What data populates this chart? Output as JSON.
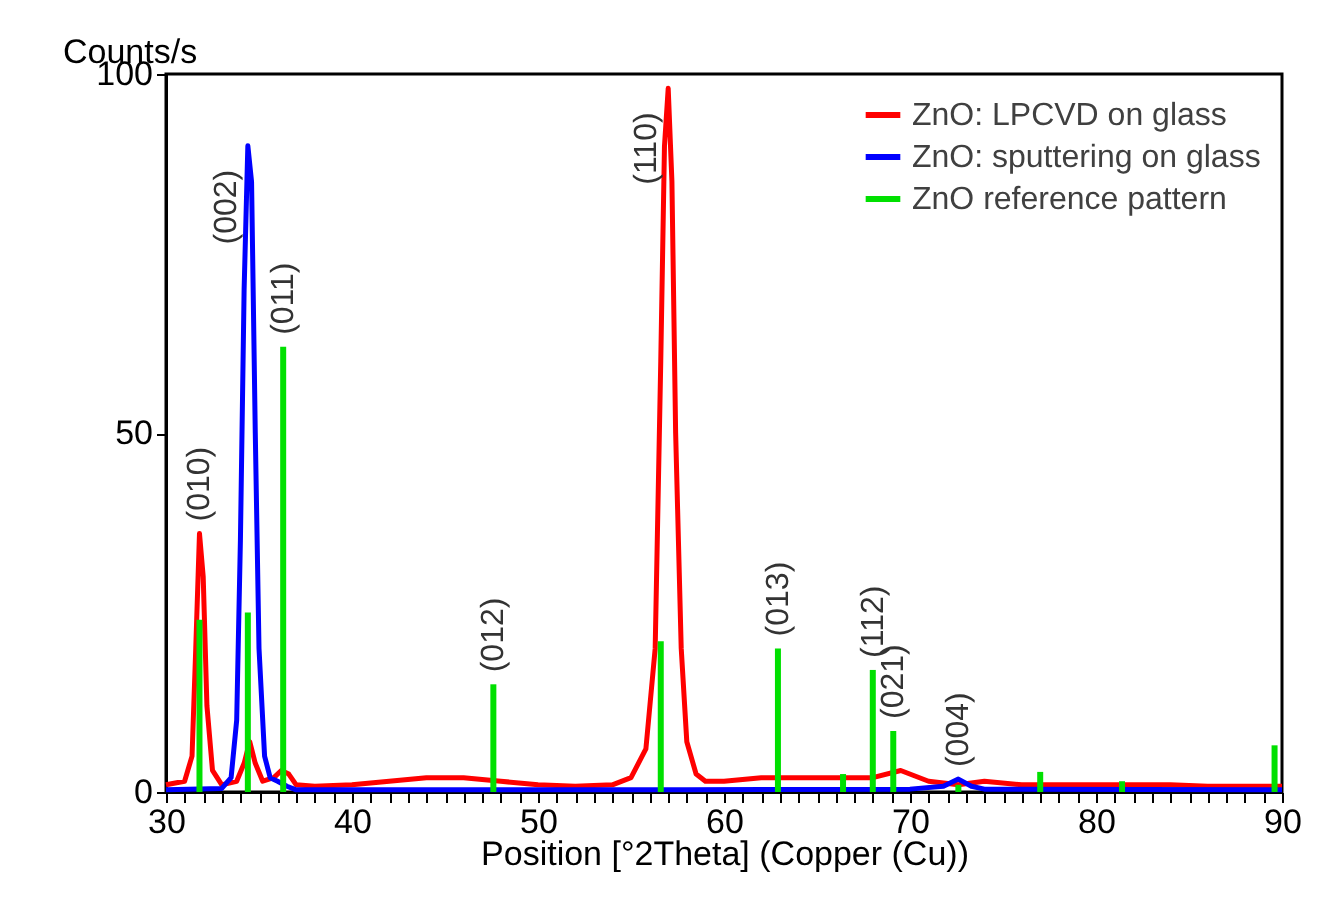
{
  "chart_data": {
    "type": "line",
    "xlabel": "Position [°2Theta] (Copper (Cu))",
    "ylabel": "Counts/s",
    "xlim": [
      30,
      90
    ],
    "ylim": [
      0,
      100
    ],
    "xticks": [
      30,
      {
        "value": 31,
        "label": null
      },
      {
        "value": 32,
        "label": null
      },
      {
        "value": 33,
        "label": null
      },
      {
        "value": 34,
        "label": null
      },
      {
        "value": 35,
        "label": null
      },
      {
        "value": 36,
        "label": null
      },
      {
        "value": 37,
        "label": null
      },
      {
        "value": 38,
        "label": null
      },
      {
        "value": 39,
        "label": null
      },
      40,
      {
        "value": 41,
        "label": null
      },
      {
        "value": 42,
        "label": null
      },
      {
        "value": 43,
        "label": null
      },
      {
        "value": 44,
        "label": null
      },
      {
        "value": 45,
        "label": null
      },
      {
        "value": 46,
        "label": null
      },
      {
        "value": 47,
        "label": null
      },
      {
        "value": 48,
        "label": null
      },
      {
        "value": 49,
        "label": null
      },
      50,
      {
        "value": 51,
        "label": null
      },
      {
        "value": 52,
        "label": null
      },
      {
        "value": 53,
        "label": null
      },
      {
        "value": 54,
        "label": null
      },
      {
        "value": 55,
        "label": null
      },
      {
        "value": 56,
        "label": null
      },
      {
        "value": 57,
        "label": null
      },
      {
        "value": 58,
        "label": null
      },
      {
        "value": 59,
        "label": null
      },
      60,
      {
        "value": 61,
        "label": null
      },
      {
        "value": 62,
        "label": null
      },
      {
        "value": 63,
        "label": null
      },
      {
        "value": 64,
        "label": null
      },
      {
        "value": 65,
        "label": null
      },
      {
        "value": 66,
        "label": null
      },
      {
        "value": 67,
        "label": null
      },
      {
        "value": 68,
        "label": null
      },
      {
        "value": 69,
        "label": null
      },
      70,
      {
        "value": 71,
        "label": null
      },
      {
        "value": 72,
        "label": null
      },
      {
        "value": 73,
        "label": null
      },
      {
        "value": 74,
        "label": null
      },
      {
        "value": 75,
        "label": null
      },
      {
        "value": 76,
        "label": null
      },
      {
        "value": 77,
        "label": null
      },
      {
        "value": 78,
        "label": null
      },
      {
        "value": 79,
        "label": null
      },
      80,
      {
        "value": 81,
        "label": null
      },
      {
        "value": 82,
        "label": null
      },
      {
        "value": 83,
        "label": null
      },
      {
        "value": 84,
        "label": null
      },
      {
        "value": 85,
        "label": null
      },
      {
        "value": 86,
        "label": null
      },
      {
        "value": 87,
        "label": null
      },
      {
        "value": 88,
        "label": null
      },
      {
        "value": 89,
        "label": null
      },
      90
    ],
    "yticks": [
      0,
      50,
      100
    ],
    "grid": false,
    "legend": "top right",
    "series": [
      {
        "name": "ZnO: LPCVD on glass",
        "color": "#ff0000",
        "x": [
          30,
          31,
          31.4,
          31.6,
          31.8,
          32.0,
          32.2,
          32.5,
          33,
          33.8,
          34.2,
          34.5,
          34.8,
          35.2,
          35.8,
          36.2,
          36.6,
          37,
          38,
          40,
          42,
          44,
          46,
          48,
          50,
          52,
          54,
          55,
          55.8,
          56.3,
          56.6,
          56.8,
          57.0,
          57.2,
          57.4,
          57.7,
          58.0,
          58.5,
          59,
          60,
          62,
          64,
          66,
          68,
          69.5,
          71,
          72.6,
          74,
          76,
          78,
          80,
          82,
          84,
          86,
          88,
          90
        ],
        "values": [
          1,
          1.5,
          5,
          20,
          36,
          30,
          12,
          3,
          1,
          1.5,
          4,
          7,
          4,
          1.5,
          2,
          3,
          2.5,
          1,
          0.8,
          1,
          1.5,
          2,
          2,
          1.5,
          1,
          0.8,
          1,
          2,
          6,
          20,
          60,
          90,
          98,
          85,
          50,
          20,
          7,
          2.5,
          1.5,
          1.5,
          2,
          2,
          2,
          2,
          3,
          1.5,
          1,
          1.5,
          1,
          1,
          1,
          1,
          1,
          0.8,
          0.8,
          0.8
        ]
      },
      {
        "name": "ZnO: sputtering on glass",
        "color": "#0000ff",
        "x": [
          30,
          33,
          33.5,
          33.8,
          34.0,
          34.2,
          34.4,
          34.6,
          34.8,
          35.0,
          35.3,
          35.6,
          36,
          36.5,
          37,
          50,
          56,
          58,
          70,
          71.8,
          72.6,
          73.3,
          74,
          90
        ],
        "values": [
          0.3,
          0.5,
          2,
          10,
          35,
          70,
          90,
          85,
          50,
          20,
          5,
          2,
          1.5,
          0.8,
          0.3,
          0.3,
          0.3,
          0.3,
          0.4,
          0.8,
          1.8,
          0.8,
          0.4,
          0.3
        ]
      },
      {
        "name": "ZnO reference pattern",
        "color": "#00e000",
        "type": "bar",
        "x": [
          31.8,
          34.4,
          36.3,
          47.6,
          56.6,
          62.9,
          66.4,
          68.0,
          69.1,
          72.6,
          77.0,
          81.4,
          89.6
        ],
        "values": [
          24,
          25,
          62,
          15,
          21,
          20,
          2.5,
          17,
          8.5,
          1,
          2.8,
          1.5,
          6.5
        ]
      }
    ],
    "annotations": [
      {
        "text": "(010)",
        "x": 31.8,
        "y": 36
      },
      {
        "text": "(002)",
        "x": 34.4,
        "y": 90
      },
      {
        "text": "(011)",
        "x": 36.3,
        "y": 62
      },
      {
        "text": "(012)",
        "x": 47.6,
        "y": 15
      },
      {
        "text": "(110)",
        "x": 57.0,
        "y": 98
      },
      {
        "text": "(013)",
        "x": 62.9,
        "y": 20
      },
      {
        "text": "(112)",
        "x": 68.0,
        "y": 17
      },
      {
        "text": "(021)",
        "x": 69.1,
        "y": 8.5
      },
      {
        "text": "(004)",
        "x": 72.6,
        "y": 1.8
      }
    ]
  }
}
